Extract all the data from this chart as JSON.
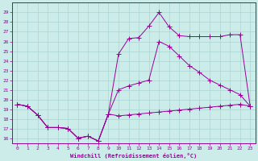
{
  "xlabel": "Windchill (Refroidissement éolien,°C)",
  "bg_color": "#ccecea",
  "grid_color": "#aad4d0",
  "line_color": "#990099",
  "x_values": [
    0,
    1,
    2,
    3,
    4,
    5,
    6,
    7,
    8,
    9,
    10,
    11,
    12,
    13,
    14,
    15,
    16,
    17,
    18,
    19,
    20,
    21,
    22,
    23
  ],
  "line_top": [
    19.5,
    19.3,
    18.4,
    17.1,
    17.1,
    17.0,
    16.0,
    16.2,
    15.7,
    18.5,
    24.7,
    26.3,
    26.4,
    27.6,
    29.0,
    27.5,
    26.6,
    26.5,
    26.5,
    26.5,
    26.5,
    26.7,
    26.7,
    19.3
  ],
  "line_mid": [
    19.5,
    19.3,
    18.4,
    17.1,
    17.1,
    17.0,
    16.0,
    16.2,
    15.7,
    18.5,
    21.0,
    21.4,
    21.7,
    22.0,
    26.0,
    25.5,
    24.5,
    23.5,
    22.8,
    22.0,
    21.5,
    21.0,
    20.5,
    19.3
  ],
  "line_bot": [
    19.5,
    19.3,
    18.4,
    17.1,
    17.1,
    17.0,
    16.0,
    16.2,
    15.7,
    18.5,
    18.3,
    18.4,
    18.5,
    18.6,
    18.7,
    18.8,
    18.9,
    19.0,
    19.1,
    19.2,
    19.3,
    19.4,
    19.5,
    19.3
  ],
  "ylim": [
    15.5,
    30.0
  ],
  "yticks": [
    16,
    17,
    18,
    19,
    20,
    21,
    22,
    23,
    24,
    25,
    26,
    27,
    28,
    29
  ],
  "xticks": [
    0,
    1,
    2,
    3,
    4,
    5,
    6,
    7,
    8,
    9,
    10,
    11,
    12,
    13,
    14,
    15,
    16,
    17,
    18,
    19,
    20,
    21,
    22,
    23
  ],
  "markersize": 2.5
}
